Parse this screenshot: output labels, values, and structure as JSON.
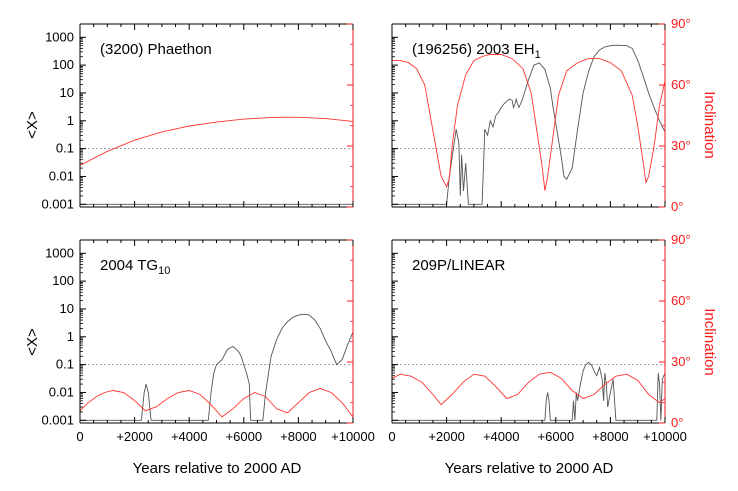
{
  "chart_data": [
    {
      "type": "line",
      "title": "(3200) Phaethon",
      "ylabel": "<X>",
      "y2label": "",
      "xlim": [
        0,
        10000
      ],
      "y1_scale": "log",
      "y1lim": [
        0.0008,
        3000
      ],
      "y1_ticks": [
        "1000",
        "100",
        "10",
        "1",
        "0.1",
        "0.01",
        "0.001"
      ],
      "y2lim": [
        0,
        90
      ],
      "y2_ticks": [],
      "x_ticks": [],
      "reference_line": 0.1,
      "series": [
        {
          "color": "#555555",
          "axis": "left",
          "x": [
            0,
            10000
          ],
          "y": [
            0.001,
            0.001
          ]
        },
        {
          "color": "#ff3333",
          "axis": "left",
          "x": [
            0,
            1000,
            2000,
            3000,
            4000,
            5000,
            6000,
            7000,
            7500,
            8000,
            9000,
            10000
          ],
          "y": [
            0.025,
            0.08,
            0.2,
            0.4,
            0.65,
            0.9,
            1.15,
            1.3,
            1.35,
            1.33,
            1.2,
            0.95
          ]
        }
      ]
    },
    {
      "type": "line",
      "title": "(196256) 2003 EH",
      "title_sub": "1",
      "ylabel": "",
      "y2label": "Inclination",
      "xlim": [
        0,
        10000
      ],
      "y1_scale": "log",
      "y1lim": [
        0.0008,
        3000
      ],
      "y1_ticks": [],
      "y2lim": [
        0,
        90
      ],
      "y2_ticks": [
        "90°",
        "60°",
        "30°",
        "0°"
      ],
      "x_ticks": [],
      "reference_line": 0.1,
      "series": [
        {
          "color": "#555555",
          "axis": "left",
          "x": [
            0,
            2000,
            2100,
            2250,
            2350,
            2450,
            2500,
            2550,
            2620,
            2700,
            2800,
            2900,
            3000,
            3100,
            3200,
            3300,
            3400,
            3500,
            3600,
            3700,
            3800,
            3900,
            4000,
            4100,
            4200,
            4300,
            4400,
            4450,
            4500,
            4550,
            4600,
            4650,
            4750,
            4850,
            5000,
            5200,
            5400,
            5600,
            5800,
            5900,
            6000,
            6100,
            6200,
            6300,
            6400,
            6600,
            6800,
            7000,
            7200,
            7400,
            7600,
            7800,
            8000,
            8200,
            8400,
            8600,
            8800,
            9000,
            9200,
            9400,
            9600,
            9800,
            10000
          ],
          "y": [
            0.001,
            0.001,
            0.01,
            0.1,
            0.5,
            0.15,
            0.002,
            0.06,
            0.003,
            0.03,
            0.001,
            0.001,
            0.001,
            0.001,
            0.001,
            0.001,
            0.5,
            0.3,
            1,
            0.6,
            1.5,
            2,
            3,
            4,
            5,
            6,
            5.5,
            3,
            4,
            6,
            4,
            3,
            5,
            10,
            30,
            100,
            120,
            70,
            15,
            3,
            0.8,
            0.2,
            0.05,
            0.01,
            0.008,
            0.02,
            0.5,
            10,
            60,
            200,
            350,
            450,
            500,
            520,
            510,
            500,
            400,
            150,
            40,
            10,
            3,
            1,
            0.4
          ]
        },
        {
          "color": "#ff3333",
          "axis": "right",
          "x": [
            0,
            300,
            600,
            900,
            1200,
            1400,
            1600,
            1800,
            2000,
            2100,
            2200,
            2400,
            2700,
            3000,
            3300,
            3600,
            4000,
            4400,
            4800,
            5100,
            5300,
            5500,
            5600,
            5700,
            5900,
            6100,
            6400,
            6800,
            7200,
            7600,
            8000,
            8400,
            8800,
            9000,
            9200,
            9300,
            9400,
            9600,
            9800,
            10000
          ],
          "y": [
            72,
            72,
            71,
            68,
            60,
            45,
            30,
            15,
            10,
            14,
            30,
            50,
            65,
            72,
            74,
            75,
            75,
            73,
            68,
            56,
            38,
            20,
            8,
            15,
            35,
            55,
            67,
            71,
            73,
            73,
            71,
            67,
            55,
            40,
            22,
            12,
            15,
            30,
            50,
            62
          ]
        }
      ]
    },
    {
      "type": "line",
      "title": "2004 TG",
      "title_sub": "10",
      "ylabel": "<X>",
      "y2label": "",
      "xlim": [
        0,
        10000
      ],
      "y1_scale": "log",
      "y1lim": [
        0.0008,
        3000
      ],
      "y1_ticks": [
        "1000",
        "100",
        "10",
        "1",
        "0.1",
        "0.01",
        "0.001"
      ],
      "y2lim": [
        0,
        90
      ],
      "y2_ticks": [],
      "x_ticks": [
        "0",
        "+2000",
        "+4000",
        "+6000",
        "+8000",
        "+10000"
      ],
      "xlabel": "Years relative to 2000 AD",
      "reference_line": 0.1,
      "series": [
        {
          "color": "#555555",
          "axis": "left",
          "x": [
            0,
            2250,
            2350,
            2420,
            2500,
            2600,
            4700,
            4800,
            4900,
            5000,
            5200,
            5400,
            5600,
            5800,
            5900,
            6000,
            6100,
            6200,
            6250,
            6300,
            6700,
            6800,
            7000,
            7200,
            7400,
            7600,
            7800,
            8000,
            8200,
            8400,
            8600,
            8800,
            9000,
            9200,
            9400,
            9600,
            9800,
            10000
          ],
          "y": [
            0.001,
            0.001,
            0.01,
            0.02,
            0.01,
            0.001,
            0.001,
            0.01,
            0.05,
            0.1,
            0.15,
            0.35,
            0.45,
            0.3,
            0.2,
            0.1,
            0.05,
            0.02,
            0.001,
            0.001,
            0.001,
            0.01,
            0.2,
            0.8,
            2,
            3.5,
            5,
            6,
            6.5,
            6,
            4,
            2,
            0.7,
            0.3,
            0.1,
            0.15,
            0.5,
            1.5
          ]
        },
        {
          "color": "#ff3333",
          "axis": "right",
          "x": [
            0,
            300,
            600,
            900,
            1200,
            1600,
            2000,
            2400,
            2800,
            3200,
            3600,
            4000,
            4400,
            4800,
            5200,
            5600,
            6000,
            6400,
            6800,
            7200,
            7600,
            8000,
            8400,
            8800,
            9200,
            9600,
            10000
          ],
          "y": [
            6,
            10,
            13,
            15,
            16,
            15,
            11,
            6,
            8,
            12,
            15,
            16,
            14,
            9,
            3,
            7,
            12,
            15,
            13,
            7,
            5,
            10,
            15,
            17,
            15,
            10,
            3
          ]
        }
      ]
    },
    {
      "type": "line",
      "title": "209P/LINEAR",
      "ylabel": "",
      "y2label": "Inclination",
      "xlim": [
        0,
        10000
      ],
      "y1_scale": "log",
      "y1lim": [
        0.0008,
        3000
      ],
      "y1_ticks": [],
      "y2lim": [
        0,
        90
      ],
      "y2_ticks": [
        "90°",
        "60°",
        "30°",
        "0°"
      ],
      "x_ticks": [
        "0",
        "+2000",
        "+4000",
        "+6000",
        "+8000",
        "+10000"
      ],
      "xlabel": "Years relative to 2000 AD",
      "reference_line": 0.1,
      "series": [
        {
          "color": "#555555",
          "axis": "left",
          "x": [
            0,
            5600,
            5650,
            5700,
            5750,
            5800,
            6600,
            6650,
            6700,
            6750,
            6800,
            6900,
            7000,
            7100,
            7200,
            7300,
            7400,
            7500,
            7600,
            7700,
            7750,
            7800,
            7850,
            7900,
            8000,
            8100,
            8200,
            8300,
            9700,
            9750,
            9800,
            9850,
            9900,
            10000
          ],
          "y": [
            0.001,
            0.001,
            0.005,
            0.01,
            0.005,
            0.001,
            0.001,
            0.005,
            0.001,
            0.01,
            0.005,
            0.02,
            0.06,
            0.1,
            0.12,
            0.1,
            0.06,
            0.04,
            0.08,
            0.03,
            0.005,
            0.05,
            0.02,
            0.003,
            0.01,
            0.03,
            0.001,
            0.001,
            0.001,
            0.05,
            0.02,
            0.001,
            0.03,
            0.05
          ]
        },
        {
          "color": "#ff3333",
          "axis": "right",
          "x": [
            0,
            300,
            700,
            1100,
            1500,
            1800,
            2200,
            2600,
            3000,
            3400,
            3800,
            4200,
            4600,
            5000,
            5400,
            5800,
            6200,
            6600,
            7000,
            7400,
            7800,
            8200,
            8600,
            9000,
            9400,
            9800,
            10000
          ],
          "y": [
            22,
            24,
            23,
            20,
            14,
            9,
            14,
            20,
            24,
            23,
            18,
            12,
            14,
            20,
            24,
            25,
            22,
            16,
            12,
            14,
            19,
            23,
            24,
            21,
            14,
            10,
            12
          ]
        }
      ]
    }
  ]
}
